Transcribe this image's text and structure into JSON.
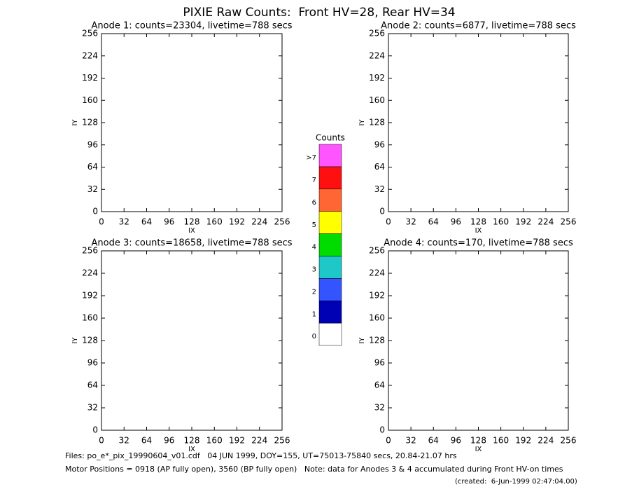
{
  "title": "PIXIE Raw Counts:  Front HV=28, Rear HV=34",
  "chart_data": [
    {
      "type": "heatmap",
      "title": "Anode 1: counts=23304, livetime=788 secs",
      "xlabel": "IX",
      "ylabel": "IY",
      "xlim": [
        0,
        256
      ],
      "ylim": [
        0,
        256
      ],
      "xticks": [
        0,
        32,
        64,
        96,
        128,
        160,
        192,
        224,
        256
      ],
      "yticks": [
        0,
        32,
        64,
        96,
        128,
        160,
        192,
        224,
        256
      ]
    },
    {
      "type": "heatmap",
      "title": "Anode 2: counts=6877, livetime=788 secs",
      "xlabel": "IX",
      "ylabel": "IY",
      "xlim": [
        0,
        256
      ],
      "ylim": [
        0,
        256
      ],
      "xticks": [
        0,
        32,
        64,
        96,
        128,
        160,
        192,
        224,
        256
      ],
      "yticks": [
        0,
        32,
        64,
        96,
        128,
        160,
        192,
        224,
        256
      ]
    },
    {
      "type": "heatmap",
      "title": "Anode 3: counts=18658, livetime=788 secs",
      "xlabel": "IX",
      "ylabel": "IY",
      "xlim": [
        0,
        256
      ],
      "ylim": [
        0,
        256
      ],
      "xticks": [
        0,
        32,
        64,
        96,
        128,
        160,
        192,
        224,
        256
      ],
      "yticks": [
        0,
        32,
        64,
        96,
        128,
        160,
        192,
        224,
        256
      ]
    },
    {
      "type": "heatmap",
      "title": "Anode 4: counts=170, livetime=788 secs",
      "xlabel": "IX",
      "ylabel": "IY",
      "xlim": [
        0,
        256
      ],
      "ylim": [
        0,
        256
      ],
      "xticks": [
        0,
        32,
        64,
        96,
        128,
        160,
        192,
        224,
        256
      ],
      "yticks": [
        0,
        32,
        64,
        96,
        128,
        160,
        192,
        224,
        256
      ]
    }
  ],
  "colorbar": {
    "title": "Counts",
    "levels": [
      {
        "label": "0",
        "color": "#ffffff"
      },
      {
        "label": "1",
        "color": "#0000b4"
      },
      {
        "label": "2",
        "color": "#3355ff"
      },
      {
        "label": "3",
        "color": "#1ec8c8"
      },
      {
        "label": "4",
        "color": "#00dc00"
      },
      {
        "label": "5",
        "color": "#ffff00"
      },
      {
        "label": "6",
        "color": "#ff6633"
      },
      {
        "label": "7",
        "color": "#ff1010"
      },
      {
        "label": ">7",
        "color": "#ff55ff"
      }
    ]
  },
  "footer": [
    "Files: po_e*_pix_19990604_v01.cdf   04 JUN 1999, DOY=155, UT=75013-75840 secs, 20.84-21.07 hrs",
    "Motor Positions = 0918 (AP fully open), 3560 (BP fully open)   Note: data for Anodes 3 & 4 accumulated during Front HV-on times",
    "(created:  6-Jun-1999 02:47:04.00)"
  ]
}
